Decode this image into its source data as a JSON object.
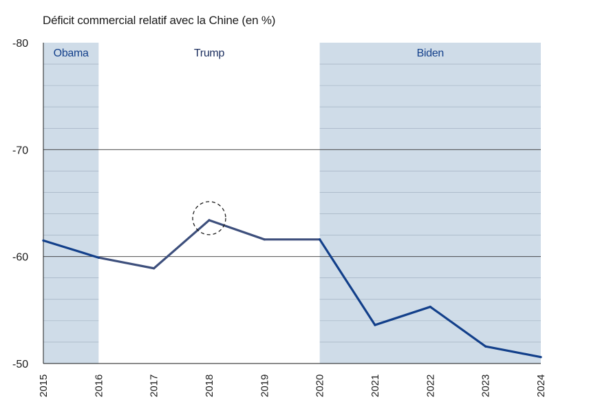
{
  "title": "Déficit commercial relatif avec la Chine (en %)",
  "colors": {
    "band": "#cfdce8",
    "line": "#123f8a",
    "line_trump": "#3d4f7c",
    "major_grid": "#333333",
    "minor_grid": "#9aa9ba",
    "band_label": "#123f8a",
    "band_label_trump": "#1d3060"
  },
  "chart_data": {
    "type": "line",
    "title": "Déficit commercial relatif avec la Chine (en %)",
    "xlabel": "",
    "ylabel": "",
    "x": [
      "2015",
      "2016",
      "2017",
      "2018",
      "2019",
      "2020",
      "2021",
      "2022",
      "2023",
      "2024"
    ],
    "series": [
      {
        "values": [
          -61.5,
          -59.9,
          -58.9,
          -63.4,
          -61.6,
          -61.6,
          -53.6,
          -55.3,
          -51.6,
          -50.6
        ]
      }
    ],
    "ylim": [
      -50,
      -80
    ],
    "inverted_y": true,
    "yticks": [
      -80,
      -70,
      -60,
      -50
    ],
    "ytick_labels": [
      "-80",
      "-70",
      "-60",
      "-50"
    ],
    "grid": true,
    "bands": [
      {
        "label": "Obama",
        "from": "2015",
        "to": "2016",
        "shaded": true
      },
      {
        "label": "Trump",
        "from": "2016",
        "to": "2020",
        "shaded": false
      },
      {
        "label": "Biden",
        "from": "2020",
        "to": "2024",
        "shaded": true
      }
    ],
    "highlight": {
      "x": "2018",
      "y": -63.4,
      "style": "dashed-circle"
    }
  }
}
